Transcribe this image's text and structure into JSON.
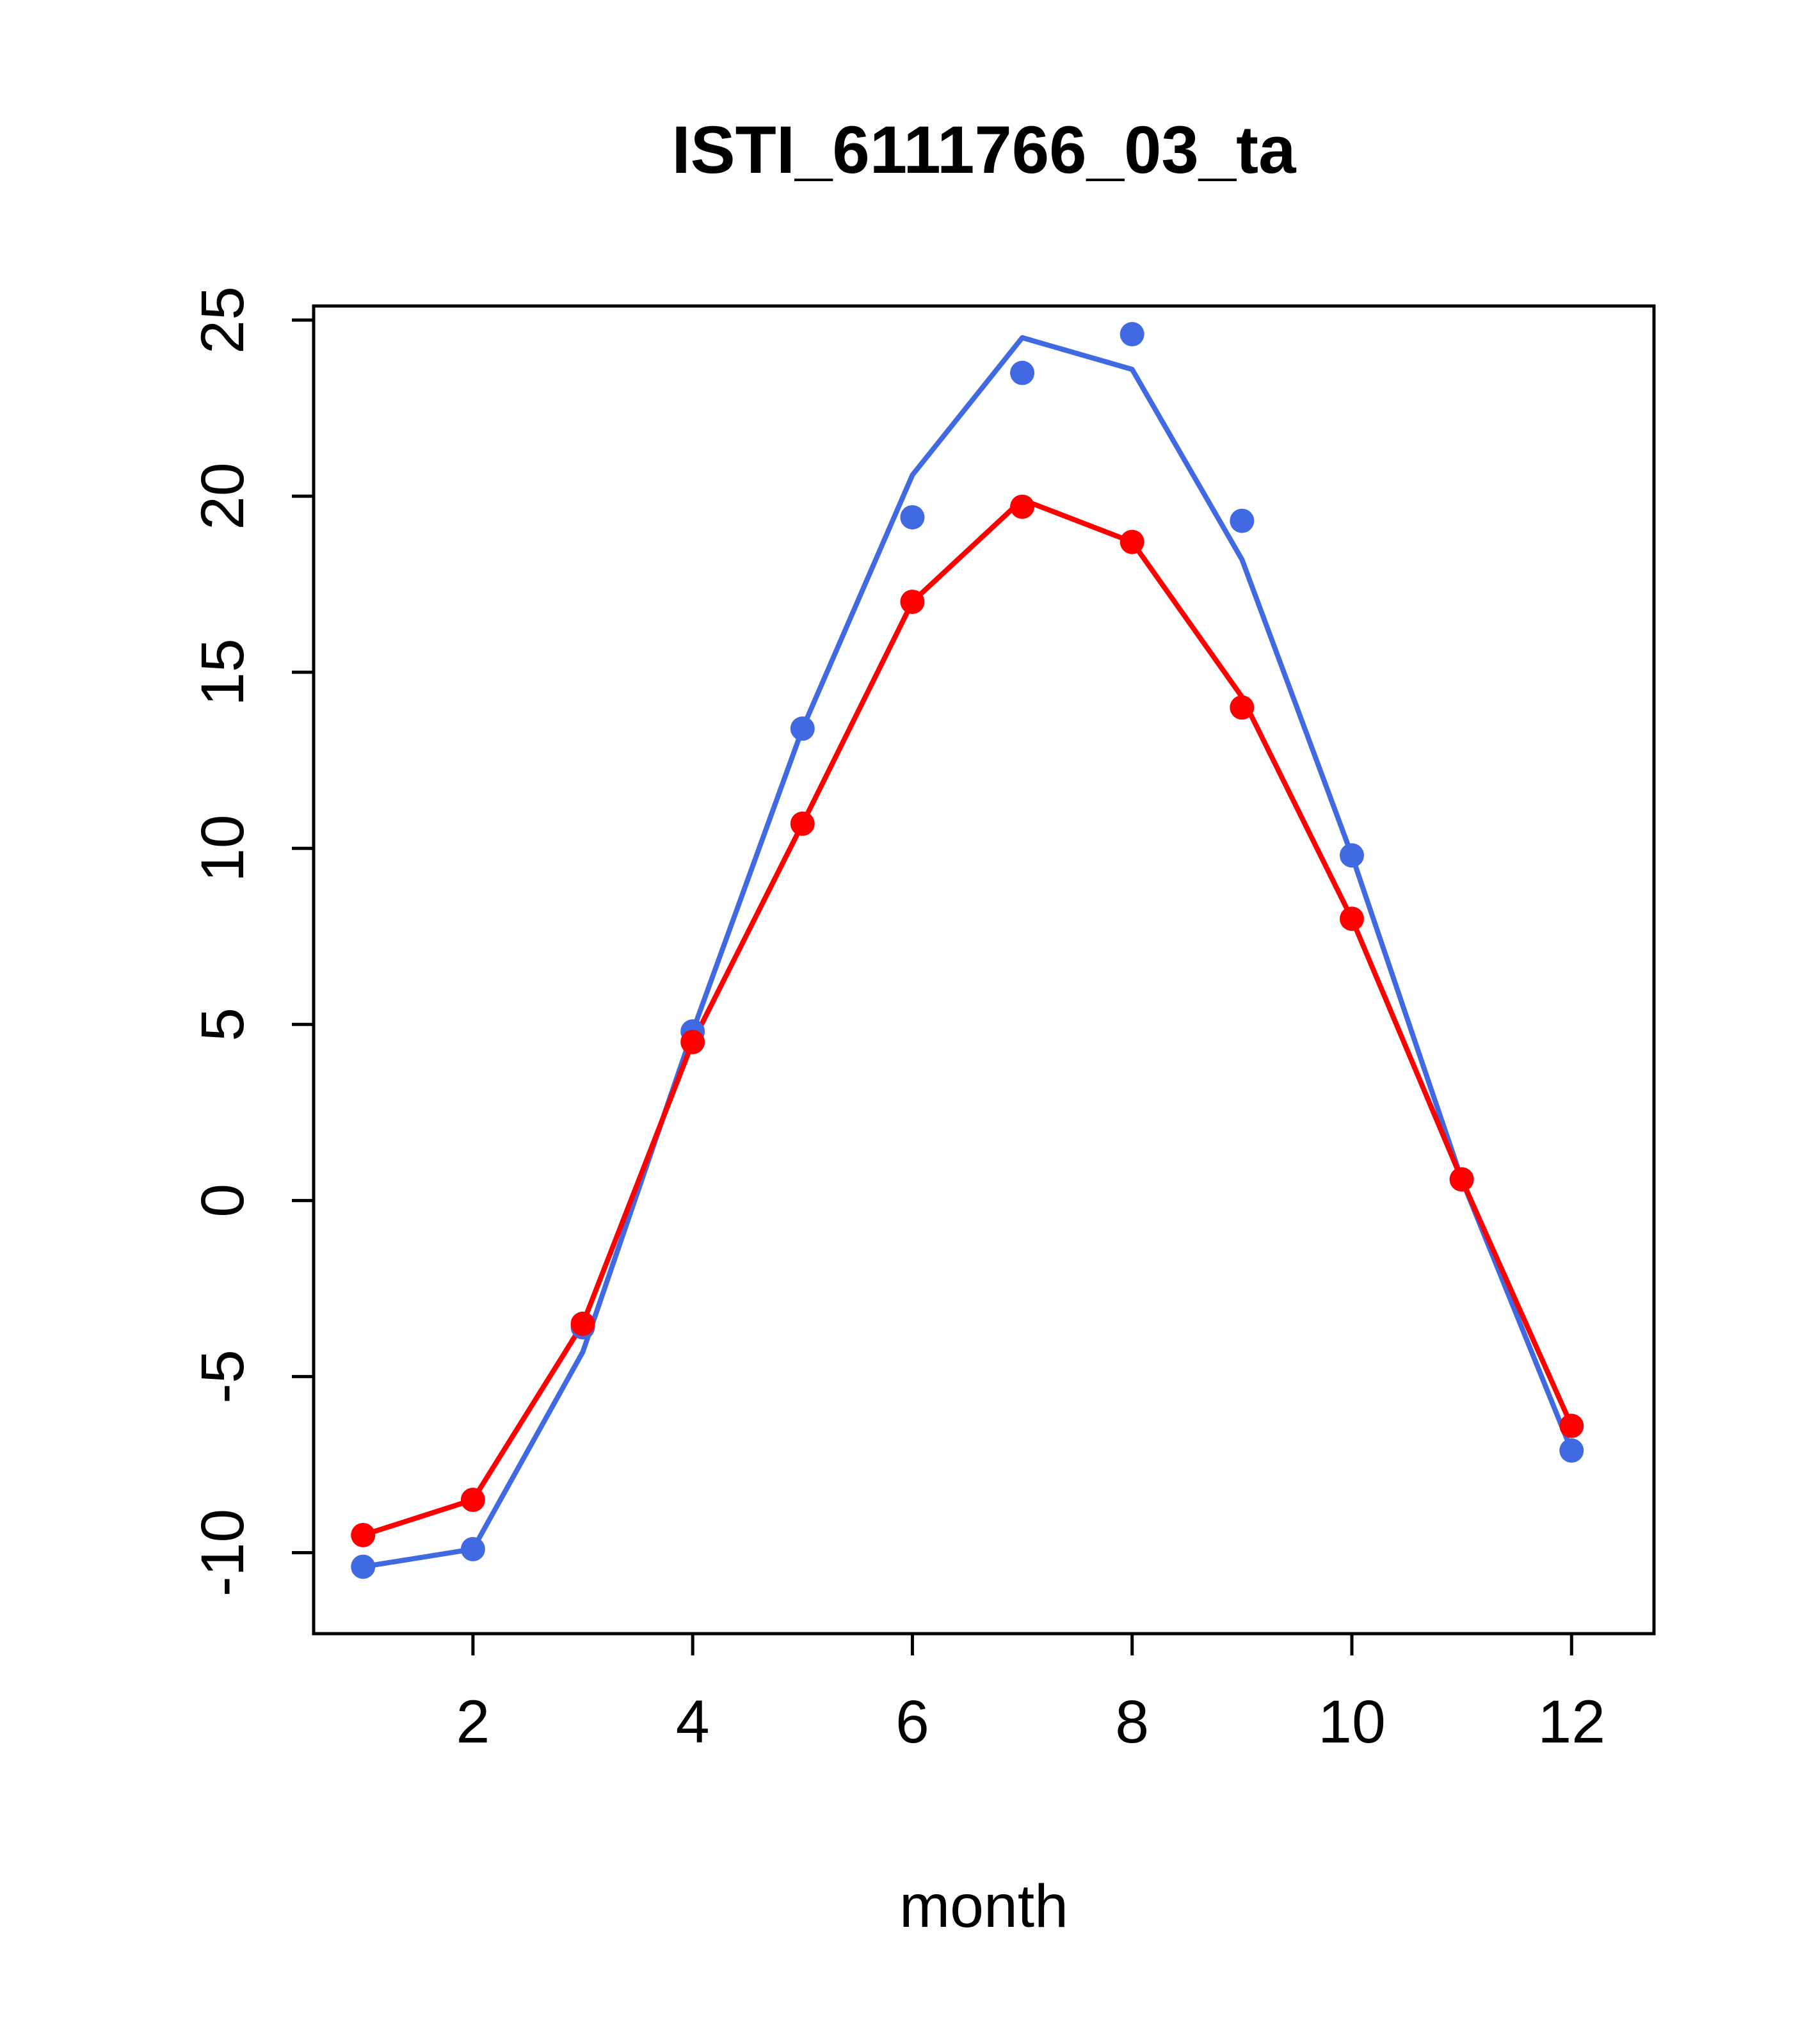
{
  "title": "ISTI_6111766_03_ta",
  "chart_data": {
    "type": "line",
    "title": "ISTI_6111766_03_ta",
    "xlabel": "month",
    "ylabel": "",
    "x": [
      1,
      2,
      3,
      4,
      5,
      6,
      7,
      8,
      9,
      10,
      11,
      12
    ],
    "xticks": [
      2,
      4,
      6,
      8,
      10,
      12
    ],
    "yticks": [
      -10,
      -5,
      0,
      5,
      10,
      15,
      20,
      25
    ],
    "xlim": [
      0.55,
      12.75
    ],
    "ylim": [
      -12.3,
      25.4
    ],
    "grid": false,
    "legend_position": "none",
    "colors": {
      "blue": "#4169e1",
      "red": "#ff0000",
      "axis": "#000000",
      "background": "#ffffff"
    },
    "series": [
      {
        "name": "blue-line",
        "type": "line",
        "color": "#4169e1",
        "values": [
          -10.4,
          -9.9,
          -4.3,
          4.8,
          13.4,
          20.6,
          24.5,
          23.6,
          18.2,
          9.8,
          0.6,
          -7.1
        ]
      },
      {
        "name": "red-line",
        "type": "line",
        "color": "#ff0000",
        "values": [
          -9.5,
          -8.5,
          -3.5,
          4.5,
          10.7,
          17.0,
          19.9,
          18.7,
          14.3,
          8.0,
          0.6,
          -6.4
        ]
      },
      {
        "name": "blue-points",
        "type": "points",
        "color": "#4169e1",
        "values": [
          -10.4,
          -9.9,
          -3.6,
          4.8,
          13.4,
          19.4,
          23.5,
          24.6,
          19.3,
          9.8,
          0.6,
          -7.1
        ]
      },
      {
        "name": "red-points",
        "type": "points",
        "color": "#ff0000",
        "values": [
          -9.5,
          -8.5,
          -3.5,
          4.5,
          10.7,
          17.0,
          19.7,
          18.7,
          14.0,
          8.0,
          0.6,
          -6.4
        ]
      }
    ]
  }
}
